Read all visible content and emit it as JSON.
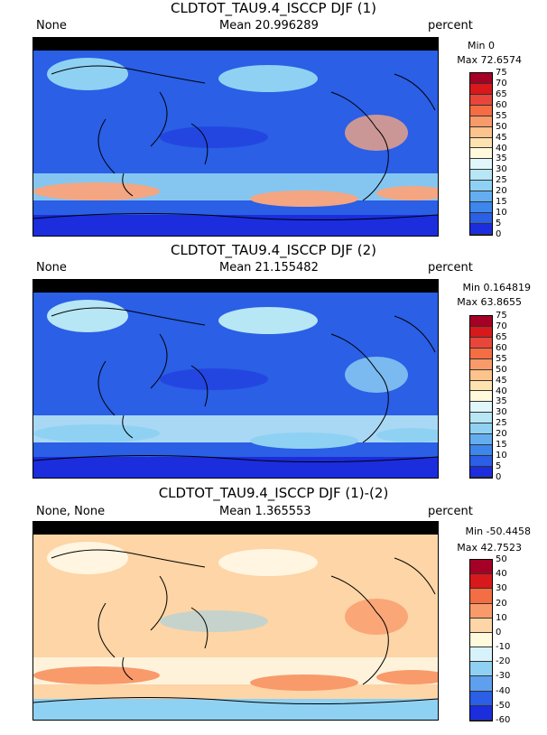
{
  "panels": [
    {
      "title": "CLDTOT_TAU9.4_ISCCP DJF (1)",
      "left_label": "None",
      "mean_label": "Mean 20.996289",
      "units": "percent",
      "min_label": "Min 0",
      "max_label": "Max 72.6574",
      "colorbar": {
        "ticks": [
          "75",
          "70",
          "65",
          "60",
          "55",
          "50",
          "45",
          "40",
          "35",
          "30",
          "25",
          "20",
          "15",
          "10",
          "5",
          "0"
        ],
        "colors": [
          "#a50026",
          "#d7191c",
          "#e8463a",
          "#f46d43",
          "#f99a6b",
          "#fdc38d",
          "#fee3b0",
          "#fffadc",
          "#e0f6fb",
          "#b7e6f5",
          "#8fd1f2",
          "#64aef0",
          "#3c86ec",
          "#2a5fe6",
          "#1b2ddc"
        ]
      },
      "map_colors": {
        "base": "#2a5fe6",
        "band1": "#8fd1f2",
        "band2": "#f4a582",
        "land": "#1b2ddc"
      }
    },
    {
      "title": "CLDTOT_TAU9.4_ISCCP DJF (2)",
      "left_label": "None",
      "mean_label": "Mean 21.155482",
      "units": "percent",
      "min_label": "Min 0.164819",
      "max_label": "Max 63.8655",
      "colorbar": {
        "ticks": [
          "75",
          "70",
          "65",
          "60",
          "55",
          "50",
          "45",
          "40",
          "35",
          "30",
          "25",
          "20",
          "15",
          "10",
          "5",
          "0"
        ],
        "colors": [
          "#a50026",
          "#d7191c",
          "#e8463a",
          "#f46d43",
          "#f99a6b",
          "#fdc38d",
          "#fee3b0",
          "#fffadc",
          "#e0f6fb",
          "#b7e6f5",
          "#8fd1f2",
          "#64aef0",
          "#3c86ec",
          "#2a5fe6",
          "#1b2ddc"
        ]
      },
      "map_colors": {
        "base": "#2a5fe6",
        "band1": "#b7e6f5",
        "band2": "#8fd1f2",
        "land": "#1b2ddc"
      }
    },
    {
      "title": "CLDTOT_TAU9.4_ISCCP DJF (1)-(2)",
      "left_label": "None, None",
      "mean_label": "Mean 1.365553",
      "units": "percent",
      "min_label": "Min -50.4458",
      "max_label": "Max 42.7523",
      "colorbar": {
        "ticks": [
          "50",
          "40",
          "30",
          "20",
          "10",
          "0",
          "-10",
          "-20",
          "-30",
          "-40",
          "-50",
          "-60"
        ],
        "colors": [
          "#a50026",
          "#d7191c",
          "#f46d43",
          "#f99a6b",
          "#fdd5a6",
          "#fffadc",
          "#d7f2fa",
          "#8fd1f2",
          "#5fa0ee",
          "#2a5fe6",
          "#1b2ddc"
        ]
      },
      "map_colors": {
        "base": "#fdd5a6",
        "band1": "#fff5e0",
        "band2": "#f99a6b",
        "land": "#8fd1f2"
      }
    }
  ]
}
